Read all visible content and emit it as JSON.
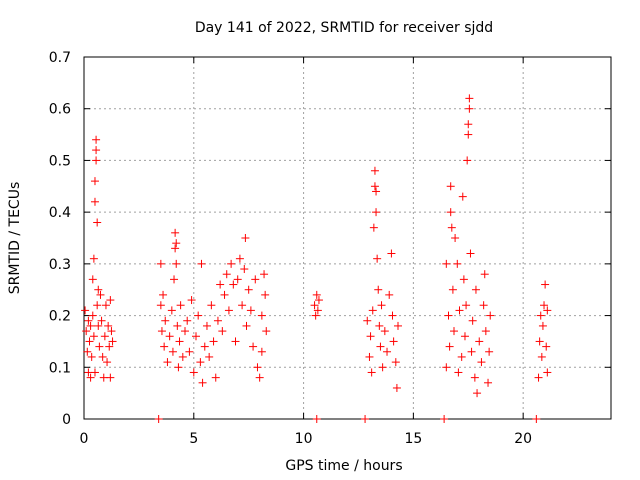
{
  "chart_data": {
    "type": "scatter",
    "title": "Day 141 of 2022, SRMTID for receiver sjdd",
    "xlabel": "GPS time / hours",
    "ylabel": "SRMTID / TECUs",
    "xlim": [
      0,
      24
    ],
    "ylim": [
      0,
      0.7
    ],
    "xticks": [
      0,
      5,
      10,
      15,
      20
    ],
    "yticks": [
      0,
      0.1,
      0.2,
      0.3,
      0.4,
      0.5,
      0.6,
      0.7
    ],
    "xtick_labels": [
      "0",
      "5",
      "10",
      "15",
      "20"
    ],
    "ytick_labels": [
      "0",
      "0.1",
      "0.2",
      "0.3",
      "0.4",
      "0.5",
      "0.6",
      "0.7"
    ],
    "grid": true,
    "marker": "+",
    "color": "#ff0000",
    "series": [
      {
        "name": "SRMTID",
        "points": [
          [
            0.05,
            0.21
          ],
          [
            0.1,
            0.17
          ],
          [
            0.15,
            0.13
          ],
          [
            0.2,
            0.09
          ],
          [
            0.2,
            0.19
          ],
          [
            0.25,
            0.15
          ],
          [
            0.3,
            0.08
          ],
          [
            0.3,
            0.18
          ],
          [
            0.35,
            0.12
          ],
          [
            0.4,
            0.2
          ],
          [
            0.4,
            0.27
          ],
          [
            0.45,
            0.16
          ],
          [
            0.45,
            0.31
          ],
          [
            0.5,
            0.09
          ],
          [
            0.5,
            0.42
          ],
          [
            0.5,
            0.46
          ],
          [
            0.55,
            0.5
          ],
          [
            0.55,
            0.52
          ],
          [
            0.55,
            0.54
          ],
          [
            0.6,
            0.38
          ],
          [
            0.6,
            0.22
          ],
          [
            0.65,
            0.25
          ],
          [
            0.65,
            0.18
          ],
          [
            0.7,
            0.14
          ],
          [
            0.75,
            0.24
          ],
          [
            0.8,
            0.19
          ],
          [
            0.85,
            0.12
          ],
          [
            0.9,
            0.08
          ],
          [
            0.95,
            0.16
          ],
          [
            1.0,
            0.22
          ],
          [
            1.05,
            0.11
          ],
          [
            1.1,
            0.18
          ],
          [
            1.15,
            0.14
          ],
          [
            1.2,
            0.08
          ],
          [
            1.2,
            0.23
          ],
          [
            1.25,
            0.17
          ],
          [
            1.3,
            0.15
          ],
          [
            3.4,
            0.0
          ],
          [
            3.5,
            0.3
          ],
          [
            3.5,
            0.22
          ],
          [
            3.55,
            0.17
          ],
          [
            3.6,
            0.24
          ],
          [
            3.65,
            0.14
          ],
          [
            3.7,
            0.19
          ],
          [
            3.8,
            0.11
          ],
          [
            3.9,
            0.16
          ],
          [
            4.0,
            0.21
          ],
          [
            4.05,
            0.13
          ],
          [
            4.1,
            0.27
          ],
          [
            4.15,
            0.33
          ],
          [
            4.15,
            0.36
          ],
          [
            4.2,
            0.34
          ],
          [
            4.2,
            0.3
          ],
          [
            4.25,
            0.18
          ],
          [
            4.3,
            0.1
          ],
          [
            4.35,
            0.15
          ],
          [
            4.4,
            0.22
          ],
          [
            4.5,
            0.12
          ],
          [
            4.6,
            0.17
          ],
          [
            4.7,
            0.19
          ],
          [
            4.8,
            0.13
          ],
          [
            4.9,
            0.23
          ],
          [
            5.0,
            0.09
          ],
          [
            5.1,
            0.16
          ],
          [
            5.2,
            0.2
          ],
          [
            5.3,
            0.11
          ],
          [
            5.35,
            0.3
          ],
          [
            5.4,
            0.07
          ],
          [
            5.5,
            0.14
          ],
          [
            5.6,
            0.18
          ],
          [
            5.7,
            0.12
          ],
          [
            5.8,
            0.22
          ],
          [
            5.9,
            0.15
          ],
          [
            6.0,
            0.08
          ],
          [
            6.1,
            0.19
          ],
          [
            6.2,
            0.26
          ],
          [
            6.3,
            0.17
          ],
          [
            6.4,
            0.24
          ],
          [
            6.5,
            0.28
          ],
          [
            6.6,
            0.21
          ],
          [
            6.7,
            0.3
          ],
          [
            6.8,
            0.26
          ],
          [
            6.9,
            0.15
          ],
          [
            7.0,
            0.27
          ],
          [
            7.1,
            0.31
          ],
          [
            7.2,
            0.22
          ],
          [
            7.3,
            0.29
          ],
          [
            7.35,
            0.35
          ],
          [
            7.4,
            0.18
          ],
          [
            7.5,
            0.25
          ],
          [
            7.6,
            0.21
          ],
          [
            7.7,
            0.14
          ],
          [
            7.8,
            0.27
          ],
          [
            7.9,
            0.1
          ],
          [
            8.0,
            0.08
          ],
          [
            8.1,
            0.13
          ],
          [
            8.1,
            0.2
          ],
          [
            8.2,
            0.28
          ],
          [
            8.25,
            0.24
          ],
          [
            8.3,
            0.17
          ],
          [
            10.5,
            0.22
          ],
          [
            10.55,
            0.2
          ],
          [
            10.6,
            0.24
          ],
          [
            10.65,
            0.21
          ],
          [
            10.7,
            0.23
          ],
          [
            10.6,
            0.0
          ],
          [
            12.8,
            0.0
          ],
          [
            12.9,
            0.19
          ],
          [
            13.0,
            0.12
          ],
          [
            13.05,
            0.16
          ],
          [
            13.1,
            0.09
          ],
          [
            13.15,
            0.21
          ],
          [
            13.2,
            0.37
          ],
          [
            13.25,
            0.48
          ],
          [
            13.25,
            0.45
          ],
          [
            13.3,
            0.44
          ],
          [
            13.3,
            0.4
          ],
          [
            13.35,
            0.31
          ],
          [
            13.4,
            0.25
          ],
          [
            13.45,
            0.18
          ],
          [
            13.5,
            0.14
          ],
          [
            13.55,
            0.22
          ],
          [
            13.6,
            0.1
          ],
          [
            13.7,
            0.17
          ],
          [
            13.8,
            0.13
          ],
          [
            13.9,
            0.24
          ],
          [
            14.0,
            0.32
          ],
          [
            14.05,
            0.2
          ],
          [
            14.1,
            0.15
          ],
          [
            14.2,
            0.11
          ],
          [
            14.25,
            0.06
          ],
          [
            14.3,
            0.18
          ],
          [
            16.4,
            0.0
          ],
          [
            16.5,
            0.3
          ],
          [
            16.5,
            0.1
          ],
          [
            16.6,
            0.2
          ],
          [
            16.65,
            0.14
          ],
          [
            16.7,
            0.45
          ],
          [
            16.7,
            0.4
          ],
          [
            16.75,
            0.37
          ],
          [
            16.8,
            0.25
          ],
          [
            16.85,
            0.17
          ],
          [
            16.9,
            0.35
          ],
          [
            17.0,
            0.3
          ],
          [
            17.05,
            0.09
          ],
          [
            17.1,
            0.21
          ],
          [
            17.2,
            0.12
          ],
          [
            17.25,
            0.43
          ],
          [
            17.3,
            0.27
          ],
          [
            17.35,
            0.16
          ],
          [
            17.4,
            0.22
          ],
          [
            17.45,
            0.5
          ],
          [
            17.5,
            0.55
          ],
          [
            17.5,
            0.57
          ],
          [
            17.55,
            0.62
          ],
          [
            17.55,
            0.6
          ],
          [
            17.6,
            0.32
          ],
          [
            17.65,
            0.13
          ],
          [
            17.7,
            0.19
          ],
          [
            17.8,
            0.08
          ],
          [
            17.85,
            0.25
          ],
          [
            17.9,
            0.05
          ],
          [
            18.0,
            0.15
          ],
          [
            18.1,
            0.11
          ],
          [
            18.2,
            0.22
          ],
          [
            18.25,
            0.28
          ],
          [
            18.3,
            0.17
          ],
          [
            18.4,
            0.07
          ],
          [
            18.45,
            0.13
          ],
          [
            18.5,
            0.2
          ],
          [
            20.6,
            0.0
          ],
          [
            20.7,
            0.08
          ],
          [
            20.75,
            0.15
          ],
          [
            20.8,
            0.2
          ],
          [
            20.85,
            0.12
          ],
          [
            20.9,
            0.18
          ],
          [
            20.95,
            0.22
          ],
          [
            21.0,
            0.26
          ],
          [
            21.05,
            0.14
          ],
          [
            21.1,
            0.09
          ],
          [
            21.1,
            0.21
          ]
        ]
      }
    ]
  }
}
